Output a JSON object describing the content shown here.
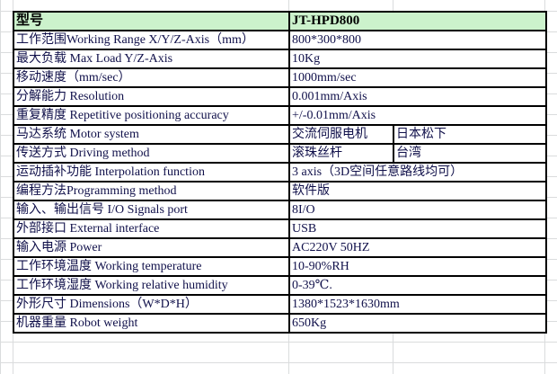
{
  "header": {
    "label": "型号",
    "value": "JT-HPD800"
  },
  "rows": [
    {
      "label": "工作范围Working Range X/Y/Z-Axis（mm）",
      "value": "800*300*800"
    },
    {
      "label": "最大负载 Max Load  Y/Z-Axis",
      "value": "10Kg"
    },
    {
      "label": "移动速度（mm/sec）",
      "value": "1000mm/sec"
    },
    {
      "label": "分解能力 Resolution",
      "value": "0.001mm/Axis"
    },
    {
      "label": "重复精度 Repetitive positioning accuracy",
      "value": "+/-0.01mm/Axis"
    },
    {
      "label": "马达系统 Motor system",
      "value": "交流伺服电机",
      "value2": "日本松下"
    },
    {
      "label": "传送方式 Driving method",
      "value": "滚珠丝杆",
      "value2": "台湾"
    },
    {
      "label": "运动插补功能 Interpolation function",
      "value": "3 axis（3D空间任意路线均可）"
    },
    {
      "label": "编程方法Programming method",
      "value": "软件版"
    },
    {
      "label": "输入、输出信号 I/O Signals port",
      "value": "8I/O"
    },
    {
      "label": "外部接口 External interface",
      "value": "USB"
    },
    {
      "label": "输入电源 Power",
      "value": "AC220V 50HZ"
    },
    {
      "label": "工作环境温度 Working temperature",
      "value": "10-90%RH"
    },
    {
      "label": "工作环境湿度 Working relative humidity",
      "value": "0-39℃."
    },
    {
      "label": "外形尺寸 Dimensions（W*D*H）",
      "value": "1380*1523*1630mm"
    },
    {
      "label": "机器重量 Robot weight",
      "value": "650Kg"
    }
  ]
}
